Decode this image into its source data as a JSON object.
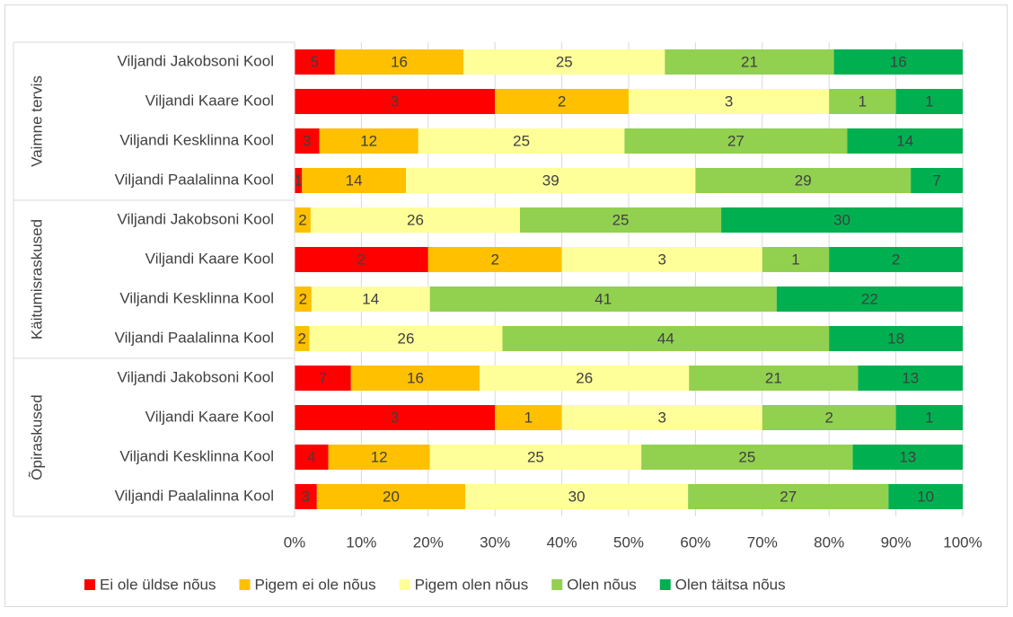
{
  "chart_data": {
    "type": "bar",
    "orientation": "horizontal",
    "stacking": "percent",
    "groups": [
      {
        "label": "Vaimne tervis",
        "categories": [
          "Viljandi Jakobsoni Kool",
          "Viljandi  Kaare Kool",
          "Viljandi Kesklinna Kool",
          "Viljandi Paalalinna Kool"
        ]
      },
      {
        "label": "Käitumisraskused",
        "categories": [
          "Viljandi Jakobsoni Kool",
          "Viljandi  Kaare Kool",
          "Viljandi Kesklinna Kool",
          "Viljandi Paalalinna Kool"
        ]
      },
      {
        "label": "Õpiraskused",
        "categories": [
          "Viljandi Jakobsoni Kool",
          "Viljandi  Kaare Kool",
          "Viljandi Kesklinna Kool",
          "Viljandi Paalalinna Kool"
        ]
      }
    ],
    "series": [
      {
        "name": "Ei ole  üldse nõus",
        "color": "#ff0000",
        "values": [
          5,
          3,
          3,
          1,
          null,
          2,
          null,
          null,
          7,
          3,
          4,
          3
        ]
      },
      {
        "name": "Pigem ei ole nõus",
        "color": "#ffc000",
        "values": [
          16,
          2,
          12,
          14,
          2,
          2,
          2,
          2,
          16,
          1,
          12,
          20
        ]
      },
      {
        "name": "Pigem olen nõus",
        "color": "#ffff99",
        "values": [
          25,
          3,
          25,
          39,
          26,
          3,
          14,
          26,
          26,
          3,
          25,
          30
        ]
      },
      {
        "name": "Olen nõus",
        "color": "#92d050",
        "values": [
          21,
          1,
          27,
          29,
          25,
          1,
          41,
          44,
          21,
          2,
          25,
          27
        ]
      },
      {
        "name": "Olen täitsa nõus",
        "color": "#00b050",
        "values": [
          16,
          1,
          14,
          7,
          30,
          2,
          22,
          18,
          13,
          1,
          13,
          10
        ]
      }
    ],
    "xlim": [
      0,
      100
    ],
    "xticks": [
      {
        "value": 0,
        "label": "0%"
      },
      {
        "value": 10,
        "label": "10%"
      },
      {
        "value": 20,
        "label": "20%"
      },
      {
        "value": 30,
        "label": "30%"
      },
      {
        "value": 40,
        "label": "40%"
      },
      {
        "value": 50,
        "label": "50%"
      },
      {
        "value": 60,
        "label": "60%"
      },
      {
        "value": 70,
        "label": "70%"
      },
      {
        "value": 80,
        "label": "80%"
      },
      {
        "value": 90,
        "label": "90%"
      },
      {
        "value": 100,
        "label": "100%"
      }
    ],
    "grid": true,
    "legend": "bottom"
  }
}
